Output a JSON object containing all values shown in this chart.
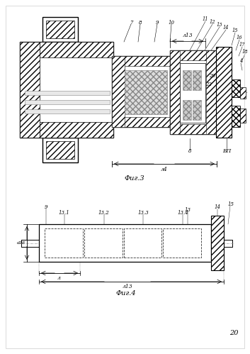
{
  "bg_color": "#ffffff",
  "fig_width": 3.53,
  "fig_height": 4.99,
  "dpi": 100,
  "fig3_label": "Фиг.3",
  "fig4_label": "Фиг.4",
  "page_number": "20"
}
